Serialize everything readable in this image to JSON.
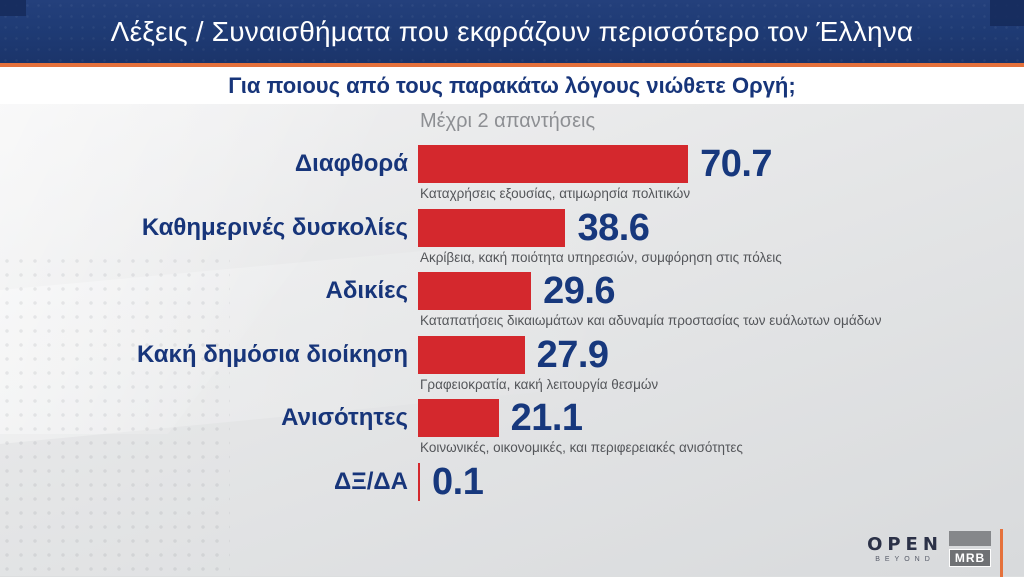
{
  "header": {
    "title": "Λέξεις / Συναισθήματα που εκφράζουν περισσότερο τον Έλληνα"
  },
  "subtitle": "Για ποιους από τους παρακάτω λόγους νιώθετε Οργή;",
  "note": "Μέχρι 2 απαντήσεις",
  "chart_data": {
    "type": "bar",
    "orientation": "horizontal",
    "title": "Για ποιους από τους παρακάτω λόγους νιώθετε Οργή;",
    "note": "Μέχρι 2 απαντήσεις",
    "categories": [
      "Διαφθορά",
      "Καθημερινές δυσκολίες",
      "Αδικίες",
      "Κακή δημόσια διοίκηση",
      "Ανισότητες",
      "ΔΞ/ΔΑ"
    ],
    "values": [
      70.7,
      38.6,
      29.6,
      27.9,
      21.1,
      0.1
    ],
    "descriptions": [
      "Καταχρήσεις εξουσίας, ατιμωρησία πολιτικών",
      "Ακρίβεια, κακή ποιότητα υπηρεσιών, συμφόρηση στις πόλεις",
      "Καταπατήσεις δικαιωμάτων και αδυναμία προστασίας των ευάλωτων ομάδων",
      "Γραφειοκρατία, κακή λειτουργία θεσμών",
      "Κοινωνικές, οικονομικές, και περιφερειακές ανισότητες",
      ""
    ],
    "xlim": [
      0,
      75
    ],
    "grid": false,
    "legend": "none",
    "bar_color": "#d4282d",
    "value_color": "#17387d",
    "category_color": "#17357a",
    "description_color": "#54565a"
  },
  "footer": {
    "open_logo": "OPEN",
    "open_logo_sub": "BEYOND",
    "mrb_logo": "MRB"
  },
  "colors": {
    "header_bg": "#1e3a73",
    "accent_orange": "#e5713b",
    "bar_red": "#d4282d",
    "navy_text": "#17357a",
    "note_gray": "#8d8f93",
    "background_gray": "#e2e3e5"
  }
}
